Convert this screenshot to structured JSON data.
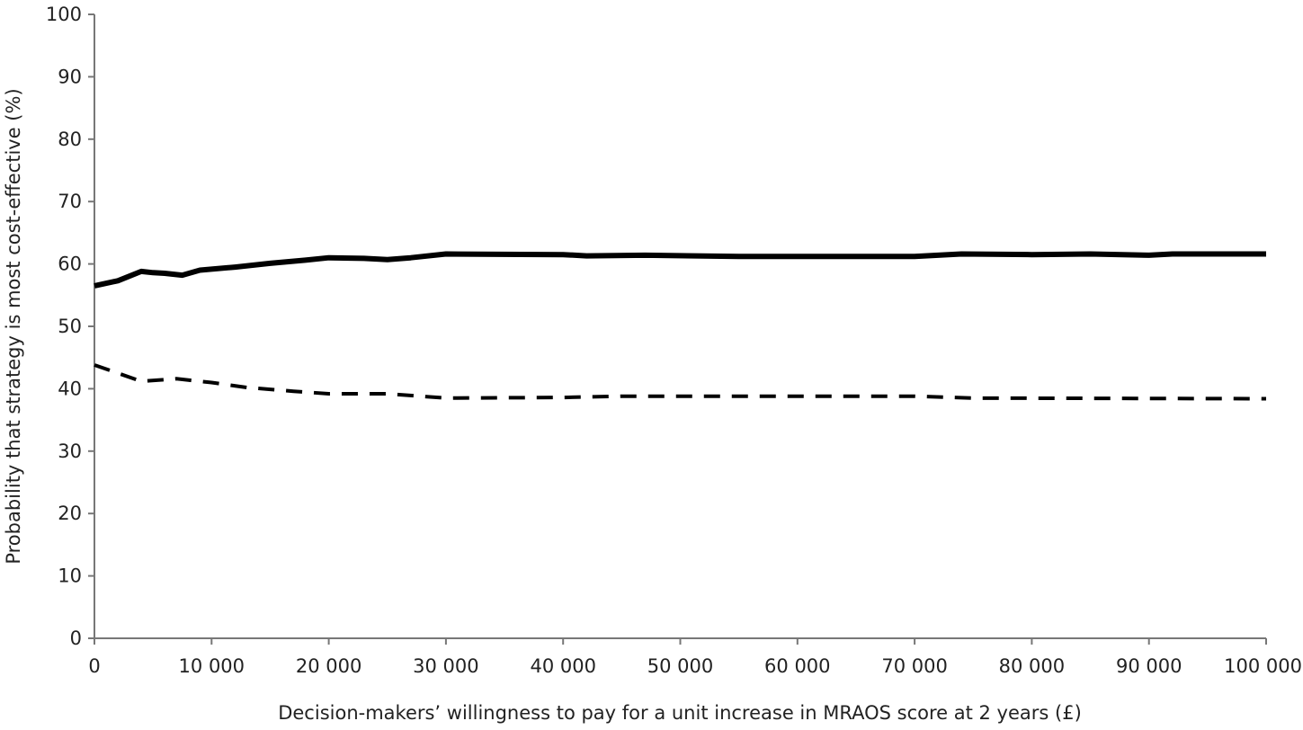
{
  "chart_data": {
    "type": "line",
    "title": "",
    "xlabel": "Decision-makers’ willingness to pay for a unit increase in MRAOS score at 2 years (£)",
    "ylabel": "Probability that strategy is most cost-effective (%)",
    "xlim": [
      0,
      100000
    ],
    "ylim": [
      0,
      100
    ],
    "grid": false,
    "legend": "none",
    "x_ticks": [
      0,
      10000,
      20000,
      30000,
      40000,
      50000,
      60000,
      70000,
      80000,
      90000,
      100000
    ],
    "x_tick_labels": [
      "0",
      "10 000",
      "20 000",
      "30 000",
      "40 000",
      "50 000",
      "60 000",
      "70 000",
      "80 000",
      "90 000",
      "100 000"
    ],
    "y_ticks": [
      0,
      10,
      20,
      30,
      40,
      50,
      60,
      70,
      80,
      90,
      100
    ],
    "y_tick_labels": [
      "0",
      "10",
      "20",
      "30",
      "40",
      "50",
      "60",
      "70",
      "80",
      "90",
      "100"
    ],
    "series": [
      {
        "style": "solid",
        "color": "#000000",
        "x": [
          0,
          2000,
          4000,
          5000,
          6000,
          7500,
          9000,
          12000,
          15000,
          18000,
          20000,
          23000,
          25000,
          27000,
          30000,
          40000,
          42000,
          47000,
          55000,
          70000,
          74000,
          80000,
          85000,
          90000,
          92000,
          100000
        ],
        "y": [
          56.5,
          57.3,
          58.8,
          58.6,
          58.5,
          58.2,
          59.0,
          59.5,
          60.1,
          60.6,
          61.0,
          60.9,
          60.7,
          61.0,
          61.6,
          61.5,
          61.3,
          61.4,
          61.2,
          61.2,
          61.6,
          61.5,
          61.6,
          61.4,
          61.6,
          61.6
        ]
      },
      {
        "style": "dashed",
        "color": "#000000",
        "x": [
          0,
          4000,
          7000,
          10000,
          13000,
          17000,
          20000,
          25000,
          30000,
          40000,
          45000,
          70000,
          75000,
          100000
        ],
        "y": [
          43.8,
          41.2,
          41.6,
          41.0,
          40.2,
          39.6,
          39.2,
          39.2,
          38.5,
          38.6,
          38.8,
          38.8,
          38.5,
          38.4
        ]
      }
    ]
  }
}
